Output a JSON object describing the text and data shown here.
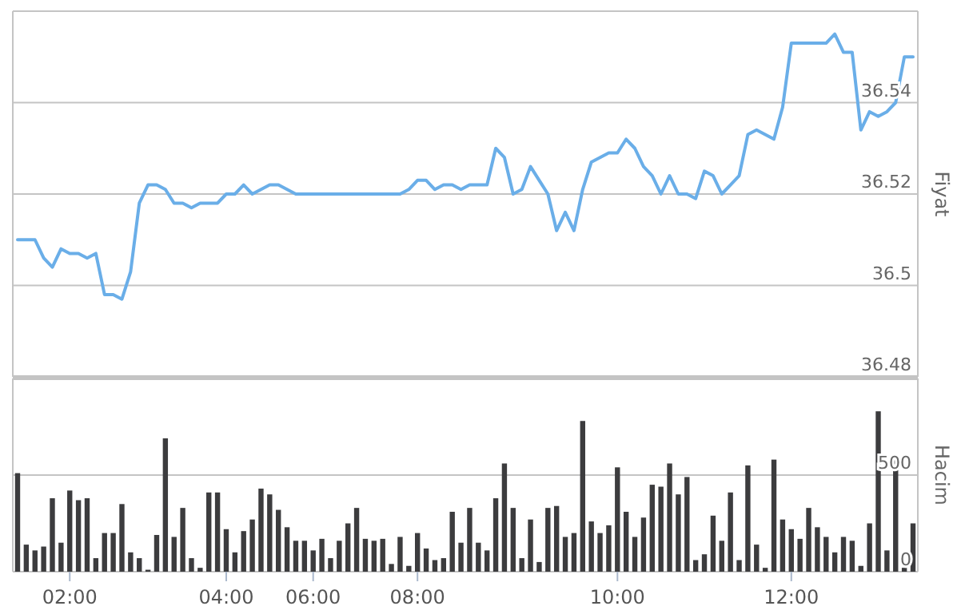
{
  "chart_data": [
    {
      "type": "line",
      "ylabel": "Fiyat",
      "color": "#6aaee8",
      "grid": "y",
      "tick_labels": "y",
      "categories": [
        null,
        null,
        null,
        null,
        null,
        null,
        null,
        null,
        null,
        null,
        null,
        null,
        null,
        null,
        null,
        null,
        null,
        null,
        null,
        null,
        null,
        null,
        null,
        null,
        null,
        null,
        null,
        null,
        null,
        null,
        null,
        null,
        null,
        null,
        null,
        null,
        null,
        null,
        null,
        null,
        null,
        null,
        null,
        null,
        null,
        null,
        null,
        null,
        null,
        null,
        null,
        null,
        null,
        null,
        null,
        null,
        null,
        null,
        null,
        null,
        null,
        null,
        null,
        null,
        null,
        null,
        null,
        null,
        null,
        null,
        null,
        null,
        null,
        null,
        null,
        null,
        null,
        null,
        null,
        null,
        null,
        null,
        null,
        null,
        null,
        null,
        null,
        null,
        null,
        null,
        null,
        null,
        null,
        null,
        null,
        null,
        null,
        null,
        null,
        null,
        null,
        null,
        null,
        null
      ],
      "values": [
        36.51,
        36.51,
        36.51,
        36.506,
        36.504,
        36.508,
        36.507,
        36.507,
        36.506,
        36.507,
        36.498,
        36.498,
        36.497,
        36.503,
        36.518,
        36.522,
        36.522,
        36.521,
        36.518,
        36.518,
        36.517,
        36.518,
        36.518,
        36.518,
        36.52,
        36.52,
        36.522,
        36.52,
        36.521,
        36.522,
        36.522,
        36.521,
        36.52,
        36.52,
        36.52,
        36.52,
        36.52,
        36.52,
        36.52,
        36.52,
        36.52,
        36.52,
        36.52,
        36.52,
        36.52,
        36.521,
        36.523,
        36.523,
        36.521,
        36.522,
        36.522,
        36.521,
        36.522,
        36.522,
        36.522,
        36.53,
        36.528,
        36.52,
        36.521,
        36.526,
        36.523,
        36.52,
        36.512,
        36.516,
        36.512,
        36.521,
        36.527,
        36.528,
        36.529,
        36.529,
        36.532,
        36.53,
        36.526,
        36.524,
        36.52,
        36.524,
        36.52,
        36.52,
        36.519,
        36.525,
        36.524,
        36.52,
        36.522,
        36.524,
        36.533,
        36.534,
        36.533,
        36.532,
        36.539,
        36.553,
        36.553,
        36.553,
        36.553,
        36.553,
        36.555,
        36.551,
        36.551,
        36.534,
        36.538,
        36.537,
        36.538,
        36.54,
        36.55,
        36.55
      ],
      "ylim": [
        36.48,
        36.56
      ],
      "yticks": [
        36.48,
        36.5,
        36.52,
        36.54
      ]
    },
    {
      "type": "bar",
      "ylabel": "Hacim",
      "color": "#3c3c3e",
      "grid": "y",
      "categories": [
        null,
        null,
        null,
        null,
        null,
        null,
        "02:00",
        null,
        null,
        null,
        null,
        null,
        null,
        null,
        null,
        null,
        null,
        null,
        null,
        null,
        null,
        null,
        null,
        null,
        "04:00",
        null,
        null,
        null,
        null,
        null,
        null,
        null,
        null,
        null,
        "06:00",
        null,
        null,
        null,
        null,
        null,
        null,
        null,
        null,
        null,
        null,
        null,
        "08:00",
        null,
        null,
        null,
        null,
        null,
        null,
        null,
        null,
        null,
        null,
        null,
        null,
        null,
        null,
        null,
        null,
        null,
        null,
        null,
        null,
        null,
        null,
        "10:00",
        null,
        null,
        null,
        null,
        null,
        null,
        null,
        null,
        null,
        null,
        null,
        null,
        null,
        null,
        null,
        null,
        null,
        null,
        null,
        "12:00",
        null,
        null,
        null,
        null,
        null,
        null,
        null,
        null,
        null,
        null,
        null,
        null,
        null,
        null
      ],
      "values": [
        510,
        140,
        110,
        130,
        380,
        150,
        420,
        370,
        380,
        70,
        200,
        200,
        350,
        100,
        70,
        10,
        190,
        690,
        180,
        330,
        70,
        20,
        410,
        410,
        220,
        100,
        210,
        270,
        430,
        400,
        320,
        230,
        160,
        160,
        110,
        170,
        70,
        160,
        250,
        330,
        170,
        160,
        170,
        40,
        180,
        30,
        200,
        120,
        60,
        70,
        310,
        150,
        330,
        150,
        110,
        380,
        560,
        330,
        70,
        270,
        50,
        330,
        340,
        180,
        200,
        780,
        260,
        200,
        240,
        540,
        310,
        180,
        280,
        450,
        440,
        560,
        400,
        490,
        60,
        90,
        290,
        160,
        410,
        60,
        550,
        140,
        20,
        580,
        270,
        220,
        170,
        330,
        230,
        180,
        100,
        180,
        160,
        30,
        250,
        830,
        110,
        590,
        20,
        250
      ],
      "ylim": [
        0,
        1000
      ],
      "yticks": [
        0,
        500
      ]
    }
  ]
}
